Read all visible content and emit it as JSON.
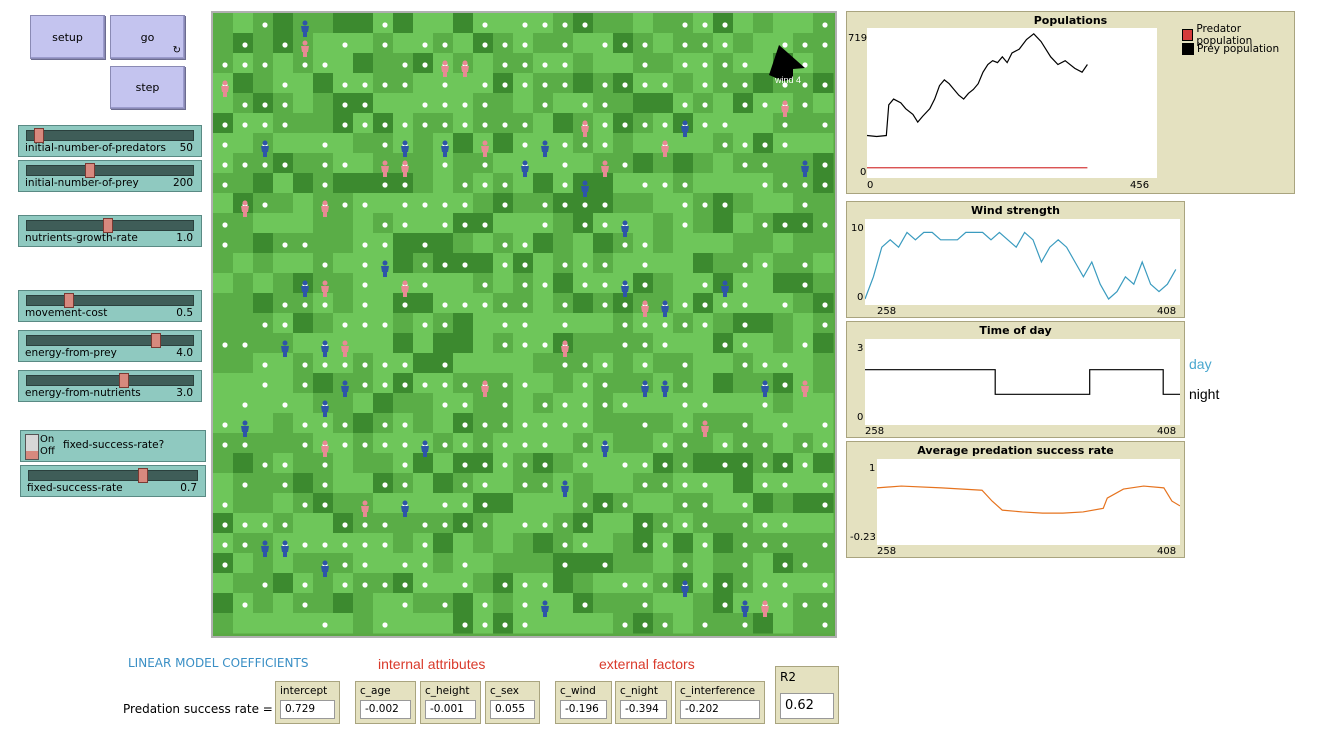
{
  "buttons": {
    "setup": "setup",
    "go": "go",
    "go_forever_glyph": "↻",
    "step": "step"
  },
  "sliders": [
    {
      "key": "initial-number-of-predators",
      "label": "initial-number-of-predators",
      "value": "50",
      "fraction": 0.05
    },
    {
      "key": "initial-number-of-prey",
      "label": "initial-number-of-prey",
      "value": "200",
      "fraction": 0.37
    },
    {
      "key": "nutrients-growth-rate",
      "label": "nutrients-growth-rate",
      "value": "1.0",
      "fraction": 0.48
    },
    {
      "key": "movement-cost",
      "label": "movement-cost",
      "value": "0.5",
      "fraction": 0.24
    },
    {
      "key": "energy-from-prey",
      "label": "energy-from-prey",
      "value": "4.0",
      "fraction": 0.78
    },
    {
      "key": "energy-from-nutrients",
      "label": "energy-from-nutrients",
      "value": "3.0",
      "fraction": 0.58
    },
    {
      "key": "fixed-success-rate",
      "label": "fixed-success-rate",
      "value": "0.7",
      "fraction": 0.68
    }
  ],
  "switch": {
    "on": "On",
    "off": "Off",
    "label": "fixed-success-rate?",
    "state": "off"
  },
  "world": {
    "wind_label": "wind 4",
    "colors": {
      "light": "#6ec65a",
      "mid": "#5aad47",
      "dark": "#3c8a2f",
      "predator": "#e88a94",
      "prey": "#2e55a8",
      "moon": "#8f8f8f"
    }
  },
  "plots": {
    "populations": {
      "title": "Populations",
      "ymax": "719",
      "ymin": "0",
      "xmin": "0",
      "xmax": "456",
      "legend": [
        {
          "name": "Predator population",
          "color": "#d43b3b"
        },
        {
          "name": "Prey population",
          "color": "#000000"
        }
      ]
    },
    "wind": {
      "title": "Wind strength",
      "ymax": "10",
      "ymin": "0",
      "xmin": "258",
      "xmax": "408",
      "color": "#3a9bbf"
    },
    "time": {
      "title": "Time of day",
      "ymax": "3",
      "ymin": "0",
      "xmin": "258",
      "xmax": "408",
      "color": "#000000"
    },
    "predation": {
      "title": "Average predation success rate",
      "ymax": "1",
      "ymin": "-0.23",
      "xmin": "258",
      "xmax": "408",
      "color": "#e6731e"
    }
  },
  "chart_data": [
    {
      "type": "line",
      "title": "Populations",
      "ylim": [
        0,
        719
      ],
      "xlim": [
        0,
        456
      ],
      "series": [
        {
          "name": "Predator population",
          "x": [
            0,
            456
          ],
          "values": [
            22,
            22
          ]
        },
        {
          "name": "Prey population",
          "x": [
            0,
            20,
            40,
            45,
            55,
            70,
            80,
            95,
            105,
            115,
            130,
            140,
            150,
            160,
            170,
            180,
            190,
            200,
            210,
            220,
            230,
            240,
            250,
            260,
            270,
            280,
            290,
            300,
            315,
            330,
            345,
            360,
            380,
            395,
            410,
            430,
            445,
            456
          ],
          "values": [
            190,
            185,
            190,
            350,
            380,
            360,
            330,
            300,
            260,
            290,
            330,
            380,
            450,
            480,
            460,
            430,
            400,
            380,
            410,
            430,
            460,
            520,
            560,
            580,
            570,
            600,
            570,
            620,
            640,
            690,
            720,
            680,
            600,
            560,
            580,
            540,
            520,
            560
          ]
        }
      ]
    },
    {
      "type": "line",
      "title": "Wind strength",
      "ylim": [
        0,
        10
      ],
      "xlim": [
        258,
        408
      ],
      "series": [
        {
          "x": [
            258,
            262,
            266,
            270,
            274,
            278,
            282,
            286,
            290,
            294,
            298,
            302,
            306,
            310,
            314,
            318,
            322,
            326,
            330,
            334,
            338,
            342,
            346,
            350,
            354,
            358,
            362,
            366,
            370,
            374,
            378,
            382,
            386,
            390,
            394,
            398,
            402,
            406
          ],
          "values": [
            0,
            3,
            7,
            8,
            7,
            9,
            8,
            9,
            9,
            8,
            8,
            8,
            9,
            9,
            9,
            8,
            9,
            8,
            7,
            9,
            8,
            5,
            7,
            8,
            7,
            5,
            3,
            5,
            2,
            0,
            1,
            3,
            2,
            5,
            2,
            1,
            2,
            4
          ]
        }
      ]
    },
    {
      "type": "line",
      "title": "Time of day",
      "ylim": [
        0,
        3
      ],
      "xlim": [
        258,
        408
      ],
      "series": [
        {
          "x": [
            258,
            320,
            320,
            365,
            365,
            400,
            400,
            408
          ],
          "values": [
            2,
            2,
            1,
            1,
            2,
            2,
            1,
            1
          ]
        }
      ]
    },
    {
      "type": "line",
      "title": "Average predation success rate",
      "ylim": [
        -0.23,
        1
      ],
      "xlim": [
        258,
        408
      ],
      "series": [
        {
          "x": [
            258,
            270,
            290,
            310,
            315,
            320,
            330,
            340,
            350,
            360,
            370,
            372,
            380,
            390,
            400,
            404,
            408
          ],
          "values": [
            0.62,
            0.65,
            0.62,
            0.58,
            0.4,
            0.25,
            0.22,
            0.2,
            0.2,
            0.22,
            0.28,
            0.45,
            0.6,
            0.65,
            0.62,
            0.4,
            0.32
          ]
        }
      ]
    }
  ],
  "day_night": {
    "day": "day",
    "night": "night",
    "day_color": "#4aa8cf",
    "night_color": "#000000"
  },
  "coefficients": {
    "heading": "LINEAR MODEL COEFFICIENTS",
    "heading_color": "#3a8fc5",
    "group_internal": "internal attributes",
    "group_external": "external factors",
    "group_color": "#d93a2b",
    "row_label": "Predation success rate =",
    "monitors": [
      {
        "key": "intercept",
        "label": "intercept",
        "value": "0.729"
      },
      {
        "key": "c_age",
        "label": "c_age",
        "value": "-0.002"
      },
      {
        "key": "c_height",
        "label": "c_height",
        "value": "-0.001"
      },
      {
        "key": "c_sex",
        "label": "c_sex",
        "value": "0.055"
      },
      {
        "key": "c_wind",
        "label": "c_wind",
        "value": "-0.196"
      },
      {
        "key": "c_night",
        "label": "c_night",
        "value": "-0.394"
      },
      {
        "key": "c_interference",
        "label": "c_interference",
        "value": "-0.202"
      }
    ],
    "r2": {
      "label": "R2",
      "value": "0.62"
    }
  }
}
